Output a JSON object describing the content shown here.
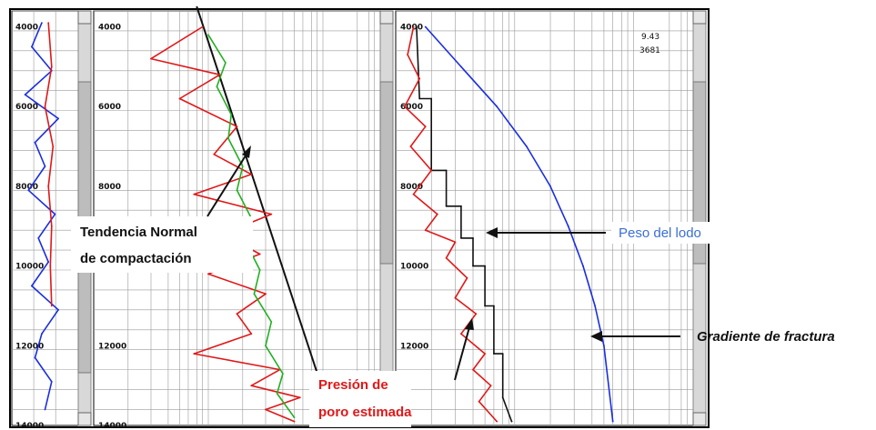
{
  "chart_data": [
    {
      "type": "line",
      "title": "",
      "ylabel": "",
      "ylim": [
        14000,
        3600
      ],
      "y_ticks": [
        "4000",
        "6000",
        "8000",
        "10000",
        "12000",
        "14000"
      ],
      "series": [
        {
          "color": "#1a2ee0",
          "x": [
            0.45,
            0.3,
            0.6,
            0.2,
            0.7,
            0.35,
            0.5,
            0.25,
            0.65,
            0.4,
            0.55,
            0.3,
            0.7,
            0.45,
            0.35,
            0.6,
            0.5
          ],
          "y": [
            3900,
            4500,
            5100,
            5700,
            6300,
            6900,
            7500,
            8100,
            8700,
            9300,
            9900,
            10500,
            11100,
            11700,
            12300,
            12900,
            13600
          ]
        },
        {
          "color": "#e01818",
          "x": [
            0.55,
            0.6,
            0.5,
            0.62,
            0.55,
            0.6,
            0.58,
            0.6
          ],
          "y": [
            3900,
            5000,
            6000,
            7000,
            8000,
            9000,
            10000,
            11000
          ]
        }
      ]
    },
    {
      "type": "line",
      "title": "",
      "ylim": [
        14000,
        3600
      ],
      "y_ticks": [
        "4000",
        "6000",
        "8000",
        "10000",
        "12000",
        "14000"
      ],
      "series": [
        {
          "color": "#111111",
          "x": [
            0.36,
            0.84
          ],
          "y": [
            3500,
            14000
          ]
        },
        {
          "color": "#e01818",
          "x": [
            0.38,
            0.2,
            0.44,
            0.3,
            0.5,
            0.42,
            0.55,
            0.35,
            0.62,
            0.45,
            0.58,
            0.4,
            0.6,
            0.5,
            0.55,
            0.35,
            0.65,
            0.55,
            0.72,
            0.6,
            0.7
          ],
          "y": [
            4000,
            4800,
            5200,
            5800,
            6500,
            7200,
            7700,
            8200,
            8700,
            9200,
            9700,
            10200,
            10700,
            11200,
            11700,
            12200,
            12600,
            13000,
            13300,
            13600,
            13900
          ]
        },
        {
          "color": "#21b021",
          "x": [
            0.4,
            0.46,
            0.43,
            0.48,
            0.47,
            0.52,
            0.5,
            0.55,
            0.53,
            0.58,
            0.56,
            0.62,
            0.6,
            0.66,
            0.64,
            0.7
          ],
          "y": [
            4200,
            4900,
            5500,
            6200,
            6800,
            7500,
            8100,
            8800,
            9400,
            10100,
            10700,
            11400,
            12000,
            12700,
            13200,
            13800
          ]
        }
      ]
    },
    {
      "type": "line",
      "title": "",
      "ylim": [
        14000,
        3600
      ],
      "y_ticks": [
        "4000",
        "6000",
        "8000",
        "10000",
        "12000"
      ],
      "header_values": [
        "9.43",
        "3681"
      ],
      "series": [
        {
          "name": "Gradiente de fractura",
          "color": "#1a2ee0",
          "x": [
            0.1,
            0.22,
            0.34,
            0.44,
            0.52,
            0.58,
            0.63,
            0.67,
            0.7,
            0.73
          ],
          "y": [
            4000,
            5000,
            6000,
            7000,
            8000,
            9000,
            10000,
            11000,
            12000,
            13900
          ]
        },
        {
          "name": "Peso del lodo",
          "color": "#111111",
          "x": [
            0.07,
            0.08,
            0.12,
            0.12,
            0.17,
            0.17,
            0.22,
            0.22,
            0.26,
            0.26,
            0.3,
            0.3,
            0.33,
            0.33,
            0.36,
            0.36,
            0.39
          ],
          "y": [
            4000,
            5800,
            5800,
            7600,
            7600,
            8500,
            8500,
            9300,
            9300,
            10000,
            10000,
            11000,
            11000,
            12200,
            12200,
            13300,
            13900
          ]
        },
        {
          "name": "Presión de poro estimada",
          "color": "#e01818",
          "x": [
            0.06,
            0.04,
            0.08,
            0.03,
            0.1,
            0.05,
            0.12,
            0.06,
            0.14,
            0.1,
            0.2,
            0.17,
            0.24,
            0.2,
            0.27,
            0.22,
            0.3,
            0.26,
            0.32,
            0.28,
            0.34
          ],
          "y": [
            4000,
            4700,
            5300,
            6000,
            6500,
            7000,
            7600,
            8200,
            8700,
            9100,
            9400,
            9800,
            10300,
            10800,
            11200,
            11700,
            12200,
            12600,
            13000,
            13400,
            13900
          ]
        }
      ]
    }
  ],
  "annotations": {
    "normal_trend_line1": "Tendencia Normal",
    "normal_trend_line2": "de compactación",
    "pore_pressure_line1": "Presión de",
    "pore_pressure_line2": "poro estimada",
    "mud_weight": "Peso del lodo",
    "fracture_gradient": "Gradiente de fractura"
  },
  "colors": {
    "frame": "#000000",
    "grid": "#9a9a9a",
    "scrollbar": "#d8d8d8"
  }
}
